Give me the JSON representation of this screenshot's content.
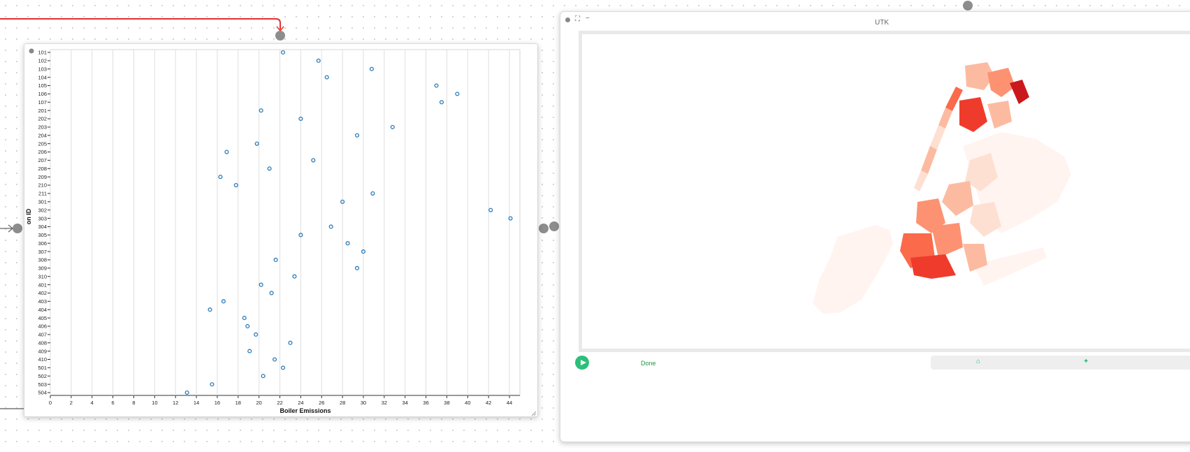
{
  "map_panel": {
    "title": "UTK",
    "status": "Done",
    "toolbar_icons": [
      "robot-icon",
      "wand-icon"
    ],
    "choropleth_color_scale": [
      "#fff4f0",
      "#fee0d2",
      "#fcbba1",
      "#fc9272",
      "#fb6a4a",
      "#ef3b2c",
      "#cb181d"
    ]
  },
  "scatter_panel": {
    "handle_glyph": "•"
  },
  "chart_data": {
    "type": "scatter",
    "xlabel": "Boiler Emissions",
    "ylabel": "on ID",
    "xlim": [
      0,
      45
    ],
    "x_ticks": [
      0,
      2,
      4,
      6,
      8,
      10,
      12,
      14,
      16,
      18,
      20,
      22,
      24,
      26,
      28,
      30,
      32,
      34,
      36,
      38,
      40,
      42,
      44
    ],
    "grid": "vertical",
    "point_color": "#2b7bb9",
    "categories": [
      "101",
      "102",
      "103",
      "104",
      "105",
      "106",
      "107",
      "201",
      "202",
      "203",
      "204",
      "205",
      "206",
      "207",
      "208",
      "209",
      "210",
      "211",
      "301",
      "302",
      "303",
      "304",
      "305",
      "306",
      "307",
      "308",
      "309",
      "310",
      "401",
      "402",
      "403",
      "404",
      "405",
      "406",
      "407",
      "408",
      "409",
      "410",
      "501",
      "502",
      "503",
      "504"
    ],
    "points": [
      {
        "y": "101",
        "x": 22.3
      },
      {
        "y": "102",
        "x": 25.7
      },
      {
        "y": "103",
        "x": 30.8
      },
      {
        "y": "104",
        "x": 26.5
      },
      {
        "y": "105",
        "x": 37.0
      },
      {
        "y": "106",
        "x": 39.0
      },
      {
        "y": "107",
        "x": 37.5
      },
      {
        "y": "201",
        "x": 20.2
      },
      {
        "y": "202",
        "x": 24.0
      },
      {
        "y": "203",
        "x": 32.8
      },
      {
        "y": "204",
        "x": 29.4
      },
      {
        "y": "205",
        "x": 19.8
      },
      {
        "y": "206",
        "x": 16.9
      },
      {
        "y": "207",
        "x": 25.2
      },
      {
        "y": "208",
        "x": 21.0
      },
      {
        "y": "209",
        "x": 16.3
      },
      {
        "y": "210",
        "x": 17.8
      },
      {
        "y": "211",
        "x": 30.9
      },
      {
        "y": "301",
        "x": 28.0
      },
      {
        "y": "302",
        "x": 42.2
      },
      {
        "y": "303",
        "x": 44.1
      },
      {
        "y": "304",
        "x": 26.9
      },
      {
        "y": "305",
        "x": 24.0
      },
      {
        "y": "306",
        "x": 28.5
      },
      {
        "y": "307",
        "x": 30.0
      },
      {
        "y": "308",
        "x": 21.6
      },
      {
        "y": "309",
        "x": 29.4
      },
      {
        "y": "310",
        "x": 23.4
      },
      {
        "y": "401",
        "x": 20.2
      },
      {
        "y": "402",
        "x": 21.2
      },
      {
        "y": "403",
        "x": 16.6
      },
      {
        "y": "404",
        "x": 15.3
      },
      {
        "y": "405",
        "x": 18.6
      },
      {
        "y": "406",
        "x": 18.9
      },
      {
        "y": "407",
        "x": 19.7
      },
      {
        "y": "408",
        "x": 23.0
      },
      {
        "y": "409",
        "x": 19.1
      },
      {
        "y": "410",
        "x": 21.5
      },
      {
        "y": "501",
        "x": 22.3
      },
      {
        "y": "502",
        "x": 20.4
      },
      {
        "y": "503",
        "x": 15.5
      },
      {
        "y": "504",
        "x": 13.1
      }
    ]
  }
}
